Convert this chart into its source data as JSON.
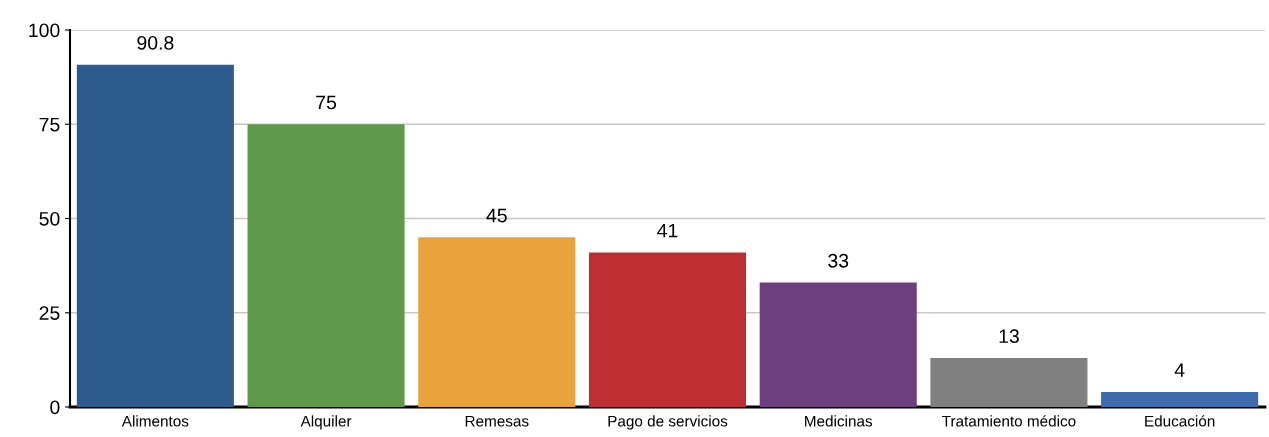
{
  "chart_data": {
    "type": "bar",
    "categories": [
      "Alimentos",
      "Alquiler",
      "Remesas",
      "Pago de servicios",
      "Medicinas",
      "Tratamiento médico",
      "Educación"
    ],
    "values": [
      90.8,
      75,
      45,
      41,
      33,
      13,
      4
    ],
    "colors": [
      "#2e5b8e",
      "#5e9a4a",
      "#e8a33d",
      "#be2d32",
      "#6e3f7e",
      "#808080",
      "#3d6bab"
    ],
    "ylim": [
      0,
      100
    ],
    "yticks": [
      0,
      25,
      50,
      75,
      100
    ],
    "grid": "y",
    "data_labels": true
  }
}
